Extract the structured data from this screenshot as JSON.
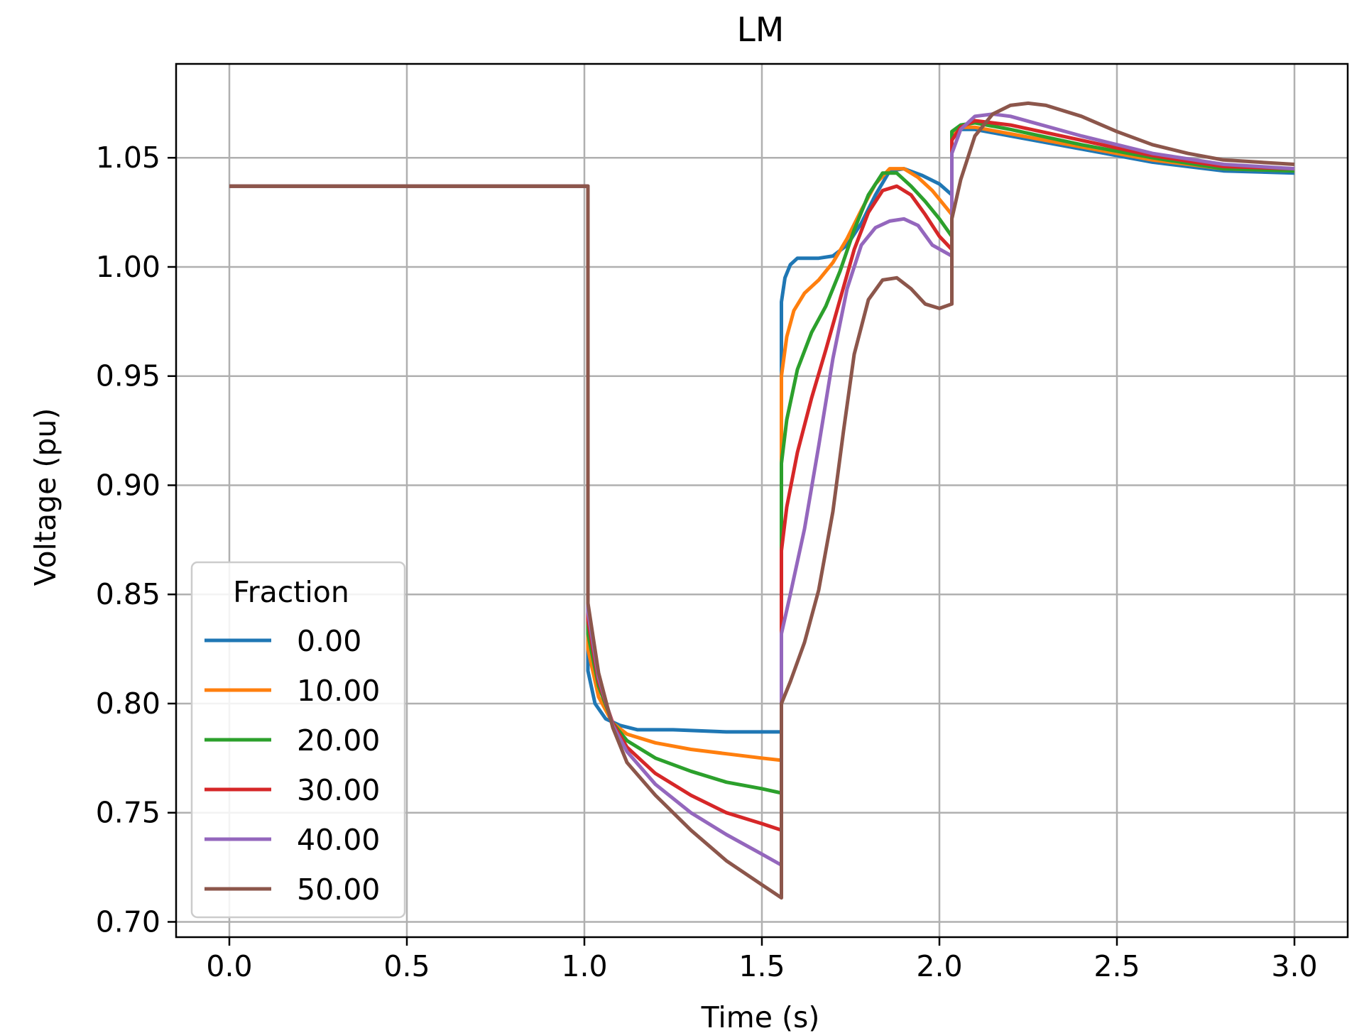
{
  "chart_data": {
    "type": "line",
    "title": "LM",
    "xlabel": "Time (s)",
    "ylabel": "Voltage (pu)",
    "xlim": [
      -0.15,
      3.15
    ],
    "ylim": [
      0.693,
      1.093
    ],
    "grid": true,
    "x_ticks": [
      0.0,
      0.5,
      1.0,
      1.5,
      2.0,
      2.5,
      3.0
    ],
    "x_tick_labels": [
      "0.0",
      "0.5",
      "1.0",
      "1.5",
      "2.0",
      "2.5",
      "3.0"
    ],
    "y_ticks": [
      0.7,
      0.75,
      0.8,
      0.85,
      0.9,
      0.95,
      1.0,
      1.05
    ],
    "y_tick_labels": [
      "0.70",
      "0.75",
      "0.80",
      "0.85",
      "0.90",
      "0.95",
      "1.00",
      "1.05"
    ],
    "legend": {
      "title": "Fraction",
      "position": "lower-left"
    },
    "series": [
      {
        "name": "0.00",
        "color": "#1f77b4",
        "points": [
          [
            0,
            1.037
          ],
          [
            1.01,
            1.037
          ],
          [
            1.01,
            0.815
          ],
          [
            1.03,
            0.8
          ],
          [
            1.06,
            0.793
          ],
          [
            1.1,
            0.79
          ],
          [
            1.15,
            0.788
          ],
          [
            1.25,
            0.788
          ],
          [
            1.4,
            0.787
          ],
          [
            1.555,
            0.787
          ],
          [
            1.555,
            0.984
          ],
          [
            1.565,
            0.995
          ],
          [
            1.58,
            1.001
          ],
          [
            1.6,
            1.004
          ],
          [
            1.63,
            1.004
          ],
          [
            1.66,
            1.004
          ],
          [
            1.7,
            1.005
          ],
          [
            1.74,
            1.01
          ],
          [
            1.78,
            1.02
          ],
          [
            1.82,
            1.033
          ],
          [
            1.86,
            1.044
          ],
          [
            1.9,
            1.045
          ],
          [
            1.95,
            1.042
          ],
          [
            2.0,
            1.038
          ],
          [
            2.035,
            1.033
          ],
          [
            2.035,
            1.06
          ],
          [
            2.06,
            1.063
          ],
          [
            2.1,
            1.063
          ],
          [
            2.2,
            1.06
          ],
          [
            2.4,
            1.054
          ],
          [
            2.6,
            1.048
          ],
          [
            2.8,
            1.044
          ],
          [
            3.0,
            1.043
          ]
        ]
      },
      {
        "name": "10.00",
        "color": "#ff7f0e",
        "points": [
          [
            0,
            1.037
          ],
          [
            1.01,
            1.037
          ],
          [
            1.01,
            0.825
          ],
          [
            1.04,
            0.803
          ],
          [
            1.08,
            0.791
          ],
          [
            1.12,
            0.786
          ],
          [
            1.2,
            0.782
          ],
          [
            1.3,
            0.779
          ],
          [
            1.4,
            0.777
          ],
          [
            1.5,
            0.775
          ],
          [
            1.555,
            0.774
          ],
          [
            1.555,
            0.95
          ],
          [
            1.57,
            0.968
          ],
          [
            1.59,
            0.98
          ],
          [
            1.62,
            0.988
          ],
          [
            1.66,
            0.994
          ],
          [
            1.7,
            1.002
          ],
          [
            1.74,
            1.013
          ],
          [
            1.78,
            1.026
          ],
          [
            1.82,
            1.038
          ],
          [
            1.86,
            1.045
          ],
          [
            1.9,
            1.045
          ],
          [
            1.94,
            1.041
          ],
          [
            1.98,
            1.035
          ],
          [
            2.035,
            1.024
          ],
          [
            2.035,
            1.061
          ],
          [
            2.06,
            1.064
          ],
          [
            2.1,
            1.064
          ],
          [
            2.2,
            1.061
          ],
          [
            2.4,
            1.055
          ],
          [
            2.6,
            1.049
          ],
          [
            2.8,
            1.045
          ],
          [
            3.0,
            1.044
          ]
        ]
      },
      {
        "name": "20.00",
        "color": "#2ca02c",
        "points": [
          [
            0,
            1.037
          ],
          [
            1.01,
            1.037
          ],
          [
            1.01,
            0.832
          ],
          [
            1.04,
            0.808
          ],
          [
            1.08,
            0.791
          ],
          [
            1.12,
            0.783
          ],
          [
            1.2,
            0.775
          ],
          [
            1.3,
            0.769
          ],
          [
            1.4,
            0.764
          ],
          [
            1.5,
            0.761
          ],
          [
            1.555,
            0.759
          ],
          [
            1.555,
            0.91
          ],
          [
            1.57,
            0.93
          ],
          [
            1.6,
            0.953
          ],
          [
            1.64,
            0.97
          ],
          [
            1.68,
            0.982
          ],
          [
            1.72,
            0.998
          ],
          [
            1.76,
            1.017
          ],
          [
            1.8,
            1.033
          ],
          [
            1.84,
            1.043
          ],
          [
            1.88,
            1.043
          ],
          [
            1.92,
            1.037
          ],
          [
            1.96,
            1.03
          ],
          [
            2.0,
            1.022
          ],
          [
            2.035,
            1.014
          ],
          [
            2.035,
            1.062
          ],
          [
            2.06,
            1.065
          ],
          [
            2.1,
            1.066
          ],
          [
            2.2,
            1.063
          ],
          [
            2.4,
            1.056
          ],
          [
            2.6,
            1.05
          ],
          [
            2.8,
            1.045
          ],
          [
            3.0,
            1.044
          ]
        ]
      },
      {
        "name": "30.00",
        "color": "#d62728",
        "points": [
          [
            0,
            1.037
          ],
          [
            1.01,
            1.037
          ],
          [
            1.01,
            0.838
          ],
          [
            1.04,
            0.81
          ],
          [
            1.08,
            0.791
          ],
          [
            1.12,
            0.78
          ],
          [
            1.2,
            0.768
          ],
          [
            1.3,
            0.758
          ],
          [
            1.4,
            0.75
          ],
          [
            1.5,
            0.745
          ],
          [
            1.555,
            0.742
          ],
          [
            1.555,
            0.87
          ],
          [
            1.57,
            0.89
          ],
          [
            1.6,
            0.915
          ],
          [
            1.64,
            0.94
          ],
          [
            1.68,
            0.962
          ],
          [
            1.72,
            0.985
          ],
          [
            1.76,
            1.008
          ],
          [
            1.8,
            1.025
          ],
          [
            1.84,
            1.035
          ],
          [
            1.88,
            1.037
          ],
          [
            1.92,
            1.033
          ],
          [
            1.96,
            1.024
          ],
          [
            2.0,
            1.014
          ],
          [
            2.035,
            1.008
          ],
          [
            2.035,
            1.058
          ],
          [
            2.06,
            1.064
          ],
          [
            2.1,
            1.067
          ],
          [
            2.2,
            1.065
          ],
          [
            2.4,
            1.058
          ],
          [
            2.6,
            1.051
          ],
          [
            2.8,
            1.046
          ],
          [
            3.0,
            1.045
          ]
        ]
      },
      {
        "name": "40.00",
        "color": "#9467bd",
        "points": [
          [
            0,
            1.037
          ],
          [
            1.01,
            1.037
          ],
          [
            1.01,
            0.842
          ],
          [
            1.04,
            0.812
          ],
          [
            1.08,
            0.79
          ],
          [
            1.12,
            0.778
          ],
          [
            1.2,
            0.763
          ],
          [
            1.3,
            0.75
          ],
          [
            1.4,
            0.74
          ],
          [
            1.5,
            0.731
          ],
          [
            1.555,
            0.726
          ],
          [
            1.555,
            0.832
          ],
          [
            1.58,
            0.85
          ],
          [
            1.62,
            0.88
          ],
          [
            1.66,
            0.918
          ],
          [
            1.7,
            0.958
          ],
          [
            1.74,
            0.99
          ],
          [
            1.78,
            1.01
          ],
          [
            1.82,
            1.018
          ],
          [
            1.86,
            1.021
          ],
          [
            1.9,
            1.022
          ],
          [
            1.94,
            1.019
          ],
          [
            1.98,
            1.01
          ],
          [
            2.035,
            1.005
          ],
          [
            2.035,
            1.052
          ],
          [
            2.06,
            1.063
          ],
          [
            2.1,
            1.069
          ],
          [
            2.15,
            1.07
          ],
          [
            2.2,
            1.069
          ],
          [
            2.4,
            1.06
          ],
          [
            2.6,
            1.052
          ],
          [
            2.8,
            1.047
          ],
          [
            3.0,
            1.045
          ]
        ]
      },
      {
        "name": "50.00",
        "color": "#8c564b",
        "points": [
          [
            0,
            1.037
          ],
          [
            1.01,
            1.037
          ],
          [
            1.01,
            0.846
          ],
          [
            1.04,
            0.814
          ],
          [
            1.08,
            0.789
          ],
          [
            1.12,
            0.773
          ],
          [
            1.2,
            0.758
          ],
          [
            1.3,
            0.742
          ],
          [
            1.4,
            0.728
          ],
          [
            1.5,
            0.717
          ],
          [
            1.555,
            0.711
          ],
          [
            1.555,
            0.8
          ],
          [
            1.58,
            0.81
          ],
          [
            1.62,
            0.828
          ],
          [
            1.66,
            0.852
          ],
          [
            1.7,
            0.888
          ],
          [
            1.73,
            0.925
          ],
          [
            1.76,
            0.96
          ],
          [
            1.8,
            0.985
          ],
          [
            1.84,
            0.994
          ],
          [
            1.88,
            0.995
          ],
          [
            1.92,
            0.99
          ],
          [
            1.96,
            0.983
          ],
          [
            2.0,
            0.981
          ],
          [
            2.035,
            0.983
          ],
          [
            2.035,
            1.022
          ],
          [
            2.06,
            1.04
          ],
          [
            2.1,
            1.06
          ],
          [
            2.15,
            1.07
          ],
          [
            2.2,
            1.074
          ],
          [
            2.25,
            1.075
          ],
          [
            2.3,
            1.074
          ],
          [
            2.4,
            1.069
          ],
          [
            2.5,
            1.062
          ],
          [
            2.6,
            1.056
          ],
          [
            2.7,
            1.052
          ],
          [
            2.8,
            1.049
          ],
          [
            3.0,
            1.047
          ]
        ]
      }
    ]
  }
}
